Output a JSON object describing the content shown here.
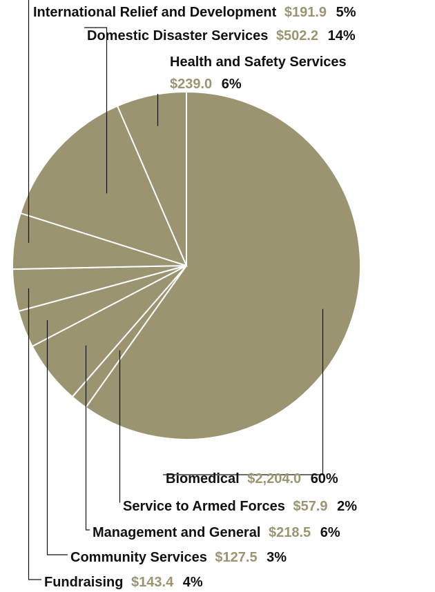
{
  "colors": {
    "slice": "#9b9470",
    "amount": "#9b9470",
    "text": "#111111",
    "leader": "#111111",
    "divider": "#ffffff"
  },
  "chart_data": {
    "type": "pie",
    "title": "",
    "unit_prefix": "$",
    "start_angle_deg": 0,
    "direction": "clockwise",
    "slices": [
      {
        "name": "Biomedical",
        "value_label": "$2,204.0",
        "value": 2204.0,
        "percent_label": "60%",
        "percent": 60
      },
      {
        "name": "Service to Armed Forces",
        "value_label": "$57.9",
        "value": 57.9,
        "percent_label": "2%",
        "percent": 2
      },
      {
        "name": "Management and General",
        "value_label": "$218.5",
        "value": 218.5,
        "percent_label": "6%",
        "percent": 6
      },
      {
        "name": "Community Services",
        "value_label": "$127.5",
        "value": 127.5,
        "percent_label": "3%",
        "percent": 3
      },
      {
        "name": "Fundraising",
        "value_label": "$143.4",
        "value": 143.4,
        "percent_label": "4%",
        "percent": 4
      },
      {
        "name": "International Relief and Development",
        "value_label": "$191.9",
        "value": 191.9,
        "percent_label": "5%",
        "percent": 5
      },
      {
        "name": "Domestic Disaster Services",
        "value_label": "$502.2",
        "value": 502.2,
        "percent_label": "14%",
        "percent": 14
      },
      {
        "name": "Health and Safety Services",
        "value_label": "$239.0",
        "value": 239.0,
        "percent_label": "6%",
        "percent": 6
      }
    ]
  }
}
